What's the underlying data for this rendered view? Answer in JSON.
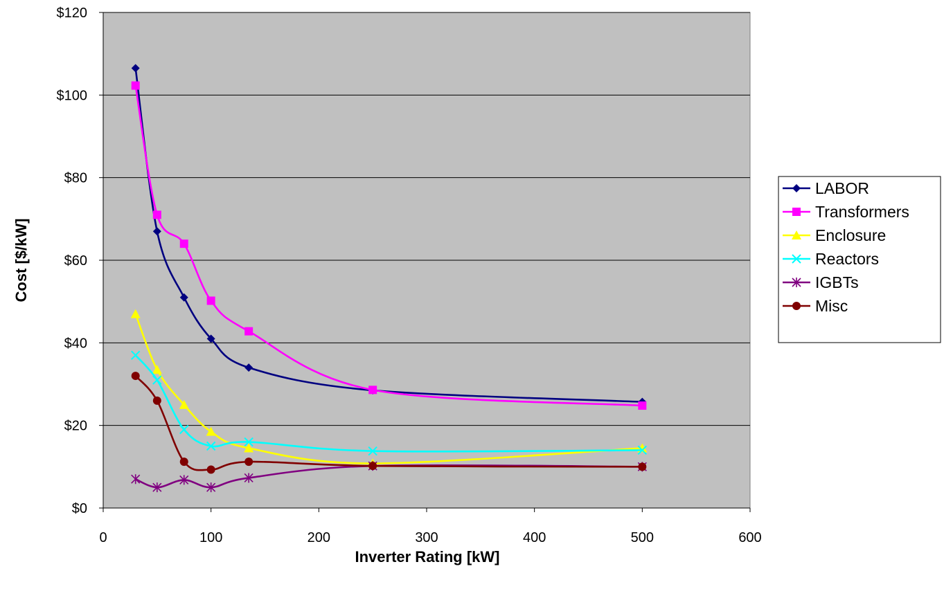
{
  "chart_data": {
    "type": "line",
    "title": "",
    "xlabel": "Inverter Rating [kW]",
    "ylabel": "Cost [$/kW]",
    "xlim": [
      0,
      600
    ],
    "ylim": [
      0,
      120
    ],
    "x_ticks": [
      0,
      100,
      200,
      300,
      400,
      500,
      600
    ],
    "x_tick_labels": [
      "0",
      "100",
      "200",
      "300",
      "400",
      "500",
      "600"
    ],
    "y_ticks": [
      0,
      20,
      40,
      60,
      80,
      100,
      120
    ],
    "y_tick_labels": [
      "$0",
      "$20",
      "$40",
      "$60",
      "$80",
      "$100",
      "$120"
    ],
    "grid": "horizontal",
    "plot_background": "#c0c0c0",
    "legend_position": "right",
    "x": [
      30,
      50,
      75,
      100,
      135,
      250,
      500
    ],
    "series": [
      {
        "name": "LABOR",
        "color": "#000080",
        "marker": "diamond",
        "values": [
          106.5,
          67,
          51,
          41,
          34,
          28.5,
          25.7
        ]
      },
      {
        "name": "Transformers",
        "color": "#ff00ff",
        "marker": "square",
        "values": [
          102.3,
          71,
          64,
          50.2,
          42.8,
          28.6,
          24.8
        ]
      },
      {
        "name": "Enclosure",
        "color": "#ffff00",
        "marker": "triangle",
        "values": [
          47,
          33.5,
          25,
          18.5,
          14.5,
          10.8,
          14.5
        ]
      },
      {
        "name": "Reactors",
        "color": "#00ffff",
        "marker": "x",
        "values": [
          37,
          31,
          19,
          15,
          16,
          13.8,
          14
        ]
      },
      {
        "name": "IGBTs",
        "color": "#800080",
        "marker": "star",
        "values": [
          7,
          5,
          6.8,
          5,
          7.3,
          10.2,
          10
        ]
      },
      {
        "name": "Misc",
        "color": "#800000",
        "marker": "circle",
        "values": [
          32,
          26,
          11.2,
          9.3,
          11.2,
          10.2,
          10
        ]
      }
    ]
  }
}
